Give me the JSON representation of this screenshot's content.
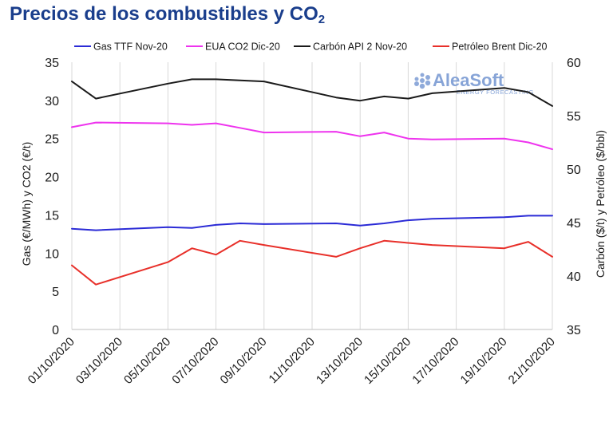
{
  "title_main": "Precios de los combustibles y CO",
  "title_sub": "2",
  "watermark": {
    "brand": "AleaSoft",
    "tagline": "ENERGY FORECASTING",
    "color": "#7b9bd3"
  },
  "chart_data": {
    "type": "line",
    "x": [
      "01/10/2020",
      "02/10/2020",
      "05/10/2020",
      "06/10/2020",
      "07/10/2020",
      "08/10/2020",
      "09/10/2020",
      "12/10/2020",
      "13/10/2020",
      "14/10/2020",
      "15/10/2020",
      "16/10/2020",
      "19/10/2020",
      "20/10/2020",
      "21/10/2020"
    ],
    "x_tick_labels": [
      "01/10/2020",
      "03/10/2020",
      "05/10/2020",
      "07/10/2020",
      "09/10/2020",
      "11/10/2020",
      "13/10/2020",
      "15/10/2020",
      "17/10/2020",
      "19/10/2020",
      "21/10/2020"
    ],
    "x_tick_days": [
      1,
      3,
      5,
      7,
      9,
      11,
      13,
      15,
      17,
      19,
      21
    ],
    "xlim_days": [
      1,
      21
    ],
    "ylabel_left": "Gas (€/MWh) y CO2 (€/t)",
    "ylabel_right": "Carbón ($/t) y Petróleo ($/bbl)",
    "ylim_left": [
      0,
      35
    ],
    "yticks_left": [
      0,
      5,
      10,
      15,
      20,
      25,
      30,
      35
    ],
    "ylim_right": [
      35,
      60
    ],
    "yticks_right": [
      35,
      40,
      45,
      50,
      55,
      60
    ],
    "grid": "vertical",
    "legend_position": "top",
    "series": [
      {
        "name": "Gas TTF Nov-20",
        "axis": "left",
        "color": "#2b2bd6",
        "values": [
          13.2,
          13.0,
          13.4,
          13.3,
          13.7,
          13.9,
          13.8,
          13.9,
          13.6,
          13.9,
          14.3,
          14.5,
          14.7,
          14.9,
          14.9
        ]
      },
      {
        "name": "EUA CO2 Dic-20",
        "axis": "left",
        "color": "#ee33ee",
        "values": [
          26.5,
          27.1,
          27.0,
          26.8,
          27.0,
          26.4,
          25.8,
          25.9,
          25.3,
          25.8,
          25.0,
          24.9,
          25.0,
          24.5,
          23.6
        ]
      },
      {
        "name": "Carbón API 2 Nov-20",
        "axis": "right",
        "color": "#1a1a1a",
        "values": [
          58.2,
          56.6,
          58.0,
          58.4,
          58.4,
          58.3,
          58.2,
          56.7,
          56.4,
          56.8,
          56.6,
          57.1,
          57.6,
          57.2,
          55.9
        ]
      },
      {
        "name": "Petróleo Brent Dic-20",
        "axis": "right",
        "color": "#e8302a",
        "values": [
          41.0,
          39.2,
          41.3,
          42.6,
          42.0,
          43.3,
          42.9,
          41.8,
          42.6,
          43.3,
          43.1,
          42.9,
          42.6,
          43.2,
          41.8
        ]
      }
    ]
  }
}
